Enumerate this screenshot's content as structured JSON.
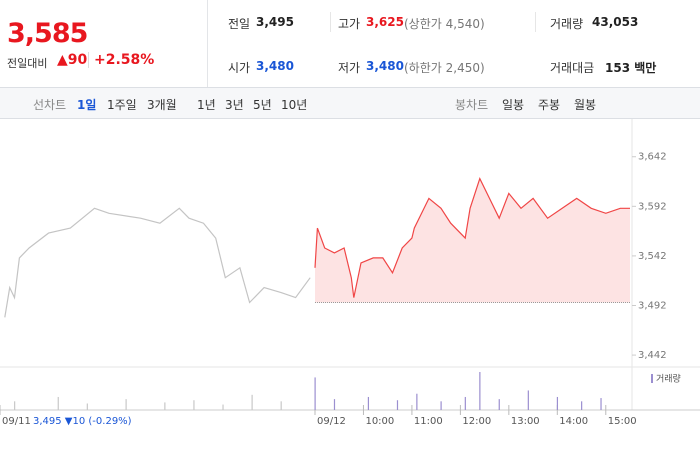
{
  "header": {
    "price": "3,585",
    "change_label": "전일대비",
    "change": "▲90",
    "change_rate": "+2.58%"
  },
  "info": [
    [
      {
        "label": "전일",
        "value": "3,495",
        "color": "#222"
      },
      {
        "label": "고가",
        "value": "3,625",
        "extra": "(상한가 4,540)",
        "color": "#e8171f"
      },
      {
        "label": "거래량",
        "value": "43,053",
        "color": "#222"
      }
    ],
    [
      {
        "label": "시가",
        "value": "3,480",
        "color": "#1a56d6"
      },
      {
        "label": "저가",
        "value": "3,480",
        "extra": "(하한가 2,450)",
        "color": "#1a56d6"
      },
      {
        "label": "거래대금",
        "value": "153 백만",
        "color": "#222"
      }
    ]
  ],
  "tabs": {
    "line_label": "선차트",
    "line": [
      "1일",
      "1주일",
      "3개월",
      "1년",
      "3년",
      "5년",
      "10년"
    ],
    "active": 0,
    "candle_label": "봉차트",
    "candle": [
      "일봉",
      "주봉",
      "월봉"
    ]
  },
  "chart_data": {
    "type": "line",
    "ylim": [
      3432,
      3674
    ],
    "yticks": [
      {
        "value": 3442,
        "label": "3,442"
      },
      {
        "value": 3492,
        "label": "3,492"
      },
      {
        "value": 3542,
        "label": "3,542"
      },
      {
        "value": 3592,
        "label": "3,592"
      },
      {
        "value": 3642,
        "label": "3,642"
      }
    ],
    "xlim": [
      0,
      13
    ],
    "xticks": [
      {
        "value": 0,
        "label": "09/11"
      },
      {
        "value": 6.5,
        "label": "09/12"
      },
      {
        "value": 7.5,
        "label": "10:00"
      },
      {
        "value": 8.5,
        "label": "11:00"
      },
      {
        "value": 9.5,
        "label": "12:00"
      },
      {
        "value": 10.5,
        "label": "13:00"
      },
      {
        "value": 11.5,
        "label": "14:00"
      },
      {
        "value": 12.5,
        "label": "15:00"
      }
    ],
    "prev_summary": "3,495 ▼10 (-0.29%)",
    "baseline": 3495,
    "series": [
      {
        "name": "09/11",
        "color": "#c4c4c4",
        "x": [
          0.1,
          0.2,
          0.3,
          0.4,
          0.6,
          1.0,
          1.45,
          1.95,
          2.25,
          2.9,
          3.3,
          3.7,
          3.9,
          4.2,
          4.45,
          4.65,
          4.95,
          5.15,
          5.45,
          5.8,
          6.1,
          6.4
        ],
        "values": [
          3480,
          3510,
          3500,
          3540,
          3550,
          3565,
          3570,
          3590,
          3585,
          3580,
          3575,
          3590,
          3580,
          3575,
          3560,
          3520,
          3530,
          3495,
          3510,
          3505,
          3500,
          3520
        ]
      },
      {
        "name": "09/12",
        "color": "#f04646",
        "fill": "#fde3e3",
        "x": [
          6.5,
          6.55,
          6.7,
          6.9,
          7.1,
          7.25,
          7.3,
          7.45,
          7.7,
          7.9,
          8.1,
          8.3,
          8.5,
          8.55,
          8.85,
          9.1,
          9.3,
          9.6,
          9.7,
          9.9,
          10.1,
          10.3,
          10.5,
          10.75,
          11.0,
          11.3,
          11.6,
          11.9,
          12.2,
          12.5,
          12.8,
          13.0
        ],
        "values": [
          3530,
          3570,
          3550,
          3545,
          3550,
          3520,
          3500,
          3535,
          3540,
          3540,
          3525,
          3550,
          3560,
          3570,
          3600,
          3590,
          3575,
          3560,
          3590,
          3620,
          3600,
          3580,
          3605,
          3590,
          3600,
          3580,
          3590,
          3600,
          3590,
          3585,
          3590,
          3590
        ]
      }
    ],
    "volume": {
      "name": "거래량",
      "color": "#9b8fd0",
      "x": [
        0.3,
        1.2,
        1.8,
        2.6,
        3.4,
        4.0,
        4.6,
        5.2,
        5.8,
        6.5,
        6.9,
        7.6,
        8.2,
        8.6,
        9.1,
        9.6,
        9.9,
        10.3,
        10.9,
        11.5,
        12.0,
        12.4
      ],
      "values": [
        8,
        12,
        6,
        10,
        7,
        9,
        5,
        14,
        8,
        30,
        10,
        12,
        9,
        15,
        8,
        12,
        35,
        10,
        18,
        12,
        8,
        11
      ]
    }
  }
}
